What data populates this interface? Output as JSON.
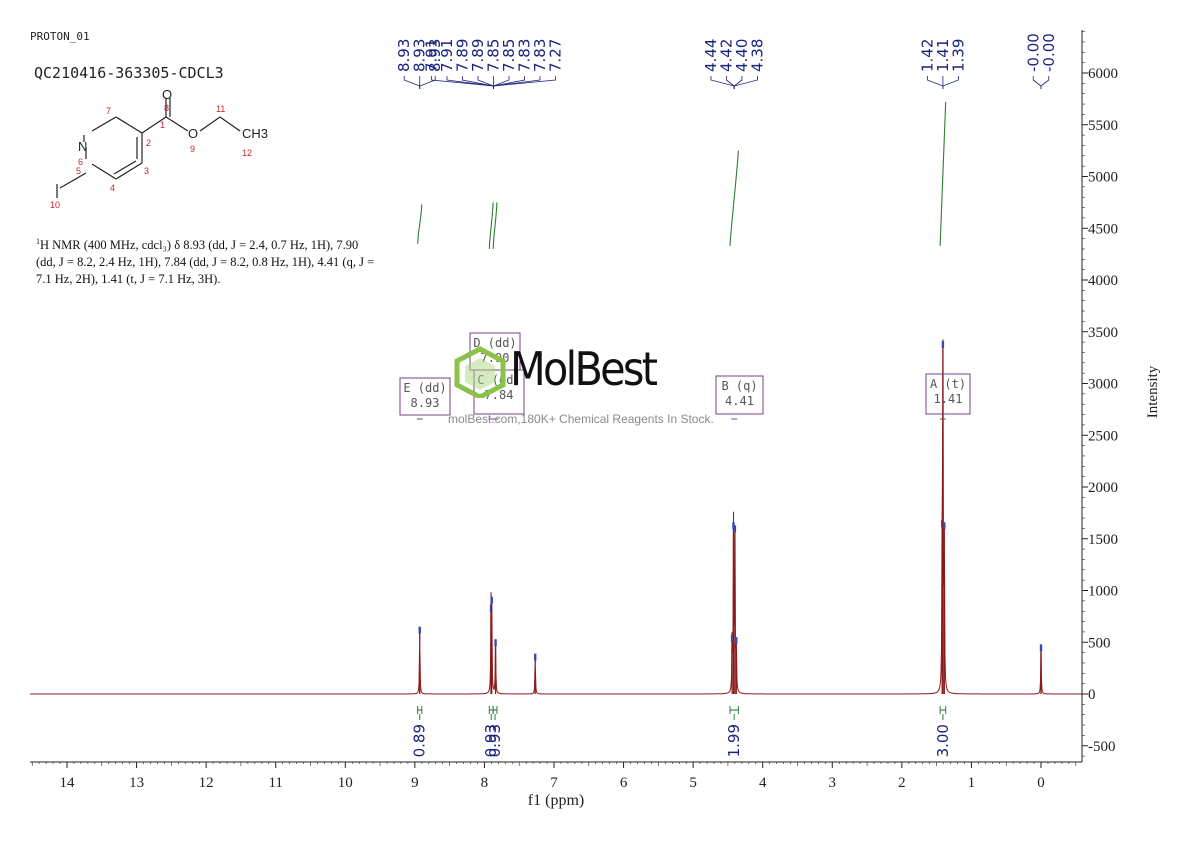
{
  "header": {
    "experiment": "PROTON_01",
    "sample": "QC210416-363305-CDCL3"
  },
  "structure": {
    "atoms": [
      "O",
      "N",
      "O",
      "CH3"
    ],
    "numbers": [
      "1",
      "2",
      "3",
      "4",
      "5",
      "6",
      "7",
      "8",
      "9",
      "10",
      "11",
      "12"
    ]
  },
  "description": {
    "nucleus_mass": "1",
    "text": "H NMR (400 MHz, cdcl₃) δ 8.93 (dd, J = 2.4, 0.7 Hz, 1H), 7.90 (dd, J = 8.2, 2.4 Hz, 1H), 7.84 (dd, J = 8.2, 0.8 Hz, 1H), 4.41 (q, J = 7.1 Hz, 2H), 1.41 (t, J = 7.1 Hz, 3H)."
  },
  "watermark": {
    "brand": "MolBest",
    "tagline": "molBest.com,180K+ Chemical Reagents In Stock."
  },
  "colors": {
    "spectrum": "#8b1a1a",
    "integral": "#2e7d32",
    "peak_label": "#1a237e",
    "multiplet_box": "#7b3f8c",
    "axis": "#222222"
  },
  "chart_data": {
    "type": "line",
    "xlabel": "f1 (ppm)",
    "ylabel": "Intensity",
    "xlim": [
      14.5,
      -0.6
    ],
    "ylim": [
      -650,
      6450
    ],
    "x_ticks": [
      14,
      13,
      12,
      11,
      10,
      9,
      8,
      7,
      6,
      5,
      4,
      3,
      2,
      1,
      0
    ],
    "y_ticks": [
      6000,
      5500,
      5000,
      4500,
      4000,
      3500,
      3000,
      2500,
      2000,
      1500,
      1000,
      500,
      0,
      -500
    ],
    "peak_labels": [
      {
        "group": "8.93 ×3",
        "labels": [
          "8.93",
          "8.93",
          "8.93"
        ],
        "target": 8.93
      },
      {
        "group": "aromatic",
        "labels": [
          "7.91",
          "7.91",
          "7.89",
          "7.89",
          "7.85",
          "7.85",
          "7.83",
          "7.83",
          "7.27"
        ],
        "target": 7.87
      },
      {
        "group": "quartet",
        "labels": [
          "4.44",
          "4.42",
          "4.40",
          "4.38"
        ],
        "target": 4.41
      },
      {
        "group": "triplet",
        "labels": [
          "1.42",
          "1.41",
          "1.39"
        ],
        "target": 1.41
      },
      {
        "group": "TMS",
        "labels": [
          "-0.00",
          "-0.00"
        ],
        "target": 0.0
      }
    ],
    "peaks": [
      {
        "x": 8.93,
        "y": 640
      },
      {
        "x": 7.905,
        "y": 850
      },
      {
        "x": 7.895,
        "y": 930
      },
      {
        "x": 7.84,
        "y": 520
      },
      {
        "x": 7.27,
        "y": 380
      },
      {
        "x": 4.44,
        "y": 560
      },
      {
        "x": 4.42,
        "y": 1650
      },
      {
        "x": 4.4,
        "y": 1620
      },
      {
        "x": 4.38,
        "y": 540
      },
      {
        "x": 1.42,
        "y": 1670
      },
      {
        "x": 1.41,
        "y": 3400
      },
      {
        "x": 1.39,
        "y": 1650
      },
      {
        "x": 0.0,
        "y": 470
      }
    ],
    "integrals": [
      {
        "x_from": 8.96,
        "x_to": 8.9,
        "value": "0.89",
        "curve_y": [
          4350,
          4730
        ]
      },
      {
        "x_from": 7.93,
        "x_to": 7.875,
        "value": "0.93",
        "curve_y": [
          4300,
          4750
        ]
      },
      {
        "x_from": 7.875,
        "x_to": 7.82,
        "value": "0.93",
        "curve_y": [
          4300,
          4750
        ]
      },
      {
        "x_from": 4.47,
        "x_to": 4.35,
        "value": "1.99",
        "curve_y": [
          4330,
          5250
        ]
      },
      {
        "x_from": 1.45,
        "x_to": 1.37,
        "value": "3.00",
        "curve_y": [
          4330,
          5720
        ]
      }
    ],
    "multiplets": [
      {
        "label": "E (dd)",
        "shift": "8.93",
        "x": 8.93
      },
      {
        "label": "D (dd)",
        "shift": "7.90",
        "x": 7.9
      },
      {
        "label": "C (dd)",
        "shift": "7.84",
        "x": 7.84
      },
      {
        "label": "B (q)",
        "shift": "4.41",
        "x": 4.41
      },
      {
        "label": "A (t)",
        "shift": "1.41",
        "x": 1.41
      }
    ]
  }
}
